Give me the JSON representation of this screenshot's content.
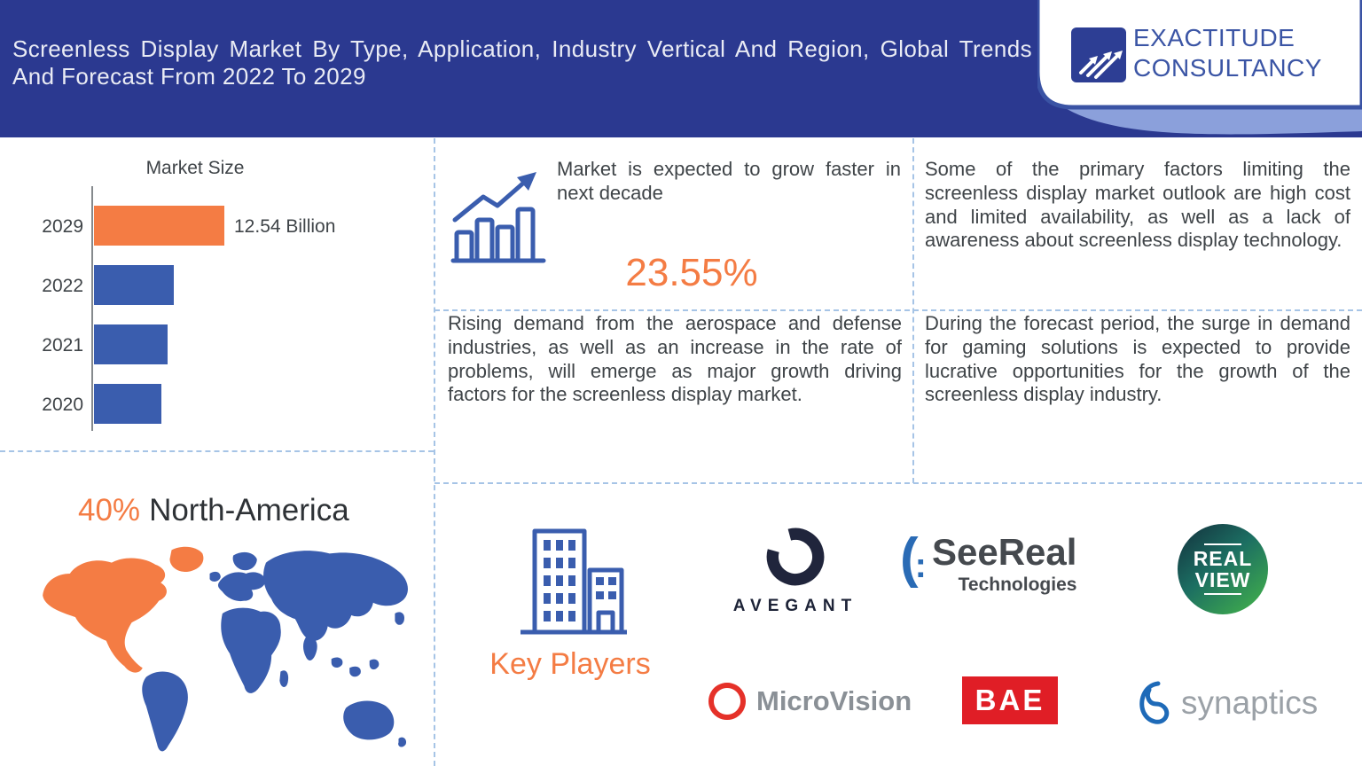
{
  "header": {
    "title": "Screenless Display Market By Type, Application, Industry Vertical And Region, Global Trends And Forecast From 2022 To 2029",
    "logo": {
      "line1": "EXACTITUDE",
      "line2": "CONSULTANCY"
    }
  },
  "chart_data": {
    "type": "bar",
    "orientation": "horizontal",
    "title": "Market Size",
    "categories": [
      "2029",
      "2022",
      "2021",
      "2020"
    ],
    "values": [
      12.54,
      7.7,
      7.1,
      6.5
    ],
    "highlight_label": "12.54 Billion",
    "bar_colors": [
      "#F47C44",
      "#3A5DAE",
      "#3A5DAE",
      "#3A5DAE"
    ],
    "xlim": [
      0,
      12.54
    ],
    "grid": false,
    "legend": false
  },
  "growth_panel": {
    "text": "Market is expected to grow faster in next decade",
    "value": "23.55%"
  },
  "panels": {
    "limiting_factors": "Some of the primary factors limiting the screenless display market outlook are high cost and limited availability, as well as a lack of awareness about screenless display technology.",
    "drivers": "Rising demand from the aerospace and defense industries, as well as an increase in the rate of problems, will emerge as major growth driving factors for the screenless display market.",
    "opportunities": "During the forecast period, the surge in demand for gaming solutions is expected to provide lucrative opportunities for the growth of the screenless display industry."
  },
  "region": {
    "share": "40%",
    "name": "North-America"
  },
  "key_players": {
    "heading": "Key Players",
    "companies": [
      {
        "name": "AVEGANT"
      },
      {
        "name": "SeeReal",
        "subtitle": "Technologies"
      },
      {
        "line1": "REAL",
        "line2": "VIEW"
      },
      {
        "name": "MicroVision"
      },
      {
        "name": "BAE"
      },
      {
        "name": "synaptics"
      }
    ]
  },
  "colors": {
    "header_bg": "#2B3990",
    "accent_orange": "#F47C44",
    "bar_blue": "#3A5DAE",
    "divider_blue": "#A6C4E6",
    "text_dark": "#3F4448"
  }
}
